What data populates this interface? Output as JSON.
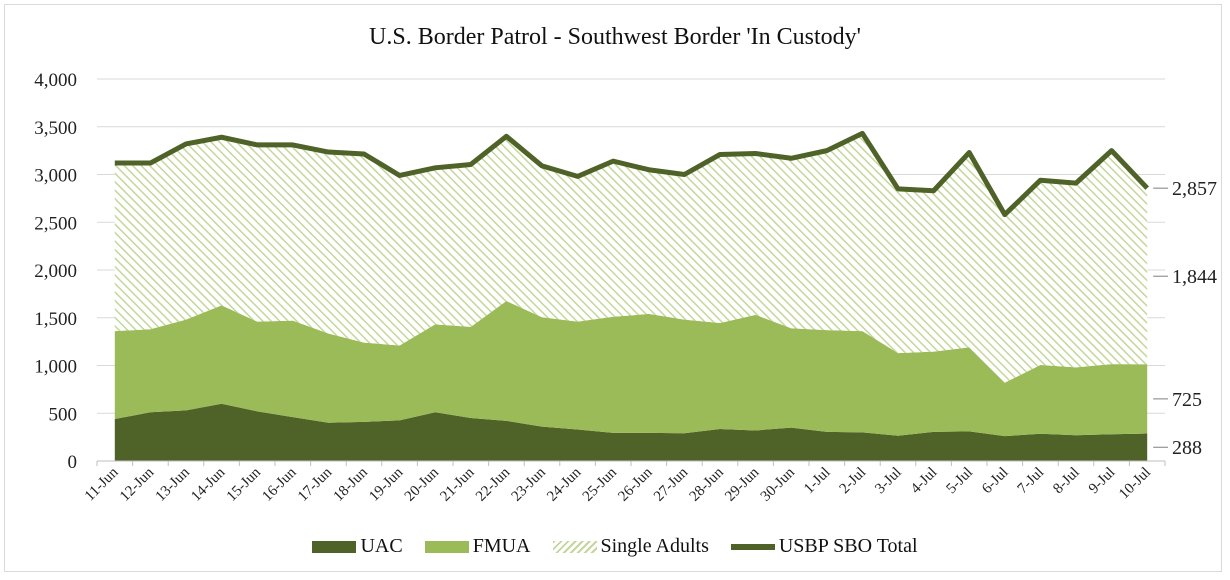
{
  "chart_data": {
    "type": "area",
    "title": "U.S. Border Patrol - Southwest Border 'In Custody'",
    "categories": [
      "11-Jun",
      "12-Jun",
      "13-Jun",
      "14-Jun",
      "15-Jun",
      "16-Jun",
      "17-Jun",
      "18-Jun",
      "19-Jun",
      "20-Jun",
      "21-Jun",
      "22-Jun",
      "23-Jun",
      "24-Jun",
      "25-Jun",
      "26-Jun",
      "27-Jun",
      "28-Jun",
      "29-Jun",
      "30-Jun",
      "1-Jul",
      "2-Jul",
      "3-Jul",
      "4-Jul",
      "5-Jul",
      "6-Jul",
      "7-Jul",
      "8-Jul",
      "9-Jul",
      "10-Jul"
    ],
    "ylim": [
      0,
      4000
    ],
    "yticks": [
      0,
      500,
      1000,
      1500,
      2000,
      2500,
      3000,
      3500,
      4000
    ],
    "ytick_labels": [
      "0",
      "500",
      "1,000",
      "1,500",
      "2,000",
      "2,500",
      "3,000",
      "3,500",
      "4,000"
    ],
    "stacked": true,
    "series": [
      {
        "name": "UAC",
        "kind": "area",
        "color": "#4f6228",
        "values": [
          440,
          510,
          530,
          600,
          520,
          460,
          400,
          410,
          425,
          510,
          450,
          420,
          360,
          330,
          295,
          295,
          290,
          335,
          320,
          350,
          305,
          300,
          265,
          305,
          310,
          260,
          285,
          270,
          280,
          288
        ]
      },
      {
        "name": "FMUA",
        "kind": "area",
        "color": "#9bbb59",
        "values": [
          920,
          870,
          950,
          1030,
          940,
          1010,
          935,
          830,
          785,
          920,
          955,
          1255,
          1145,
          1130,
          1215,
          1245,
          1190,
          1110,
          1210,
          1040,
          1065,
          1060,
          865,
          840,
          880,
          560,
          720,
          710,
          735,
          725
        ]
      },
      {
        "name": "Single Adults",
        "kind": "area",
        "color": "#c4d79b",
        "pattern": "diagonal-hatch",
        "values": [
          1760,
          1740,
          1840,
          1760,
          1850,
          1840,
          1900,
          1975,
          1780,
          1640,
          1700,
          1725,
          1585,
          1520,
          1630,
          1510,
          1520,
          1765,
          1690,
          1780,
          1880,
          2070,
          1720,
          1685,
          2040,
          1760,
          1935,
          1930,
          2235,
          1844
        ]
      },
      {
        "name": "USBP SBO Total",
        "kind": "line",
        "color": "#4f6228",
        "values": [
          3120,
          3120,
          3320,
          3390,
          3310,
          3310,
          3235,
          3215,
          2990,
          3070,
          3105,
          3400,
          3090,
          2980,
          3140,
          3050,
          3000,
          3210,
          3220,
          3170,
          3250,
          3430,
          2850,
          2830,
          3230,
          2580,
          2940,
          2910,
          3250,
          2857
        ]
      }
    ],
    "annotations": [
      {
        "label": "2,857",
        "value": 2857
      },
      {
        "label": "1,844",
        "value": 1844
      },
      {
        "label": "725",
        "value": 725
      },
      {
        "label": "288",
        "value": 288
      }
    ],
    "legend": {
      "position": "bottom",
      "labels": [
        "UAC",
        "FMUA",
        "Single Adults",
        "USBP SBO Total"
      ]
    },
    "grid": true
  }
}
